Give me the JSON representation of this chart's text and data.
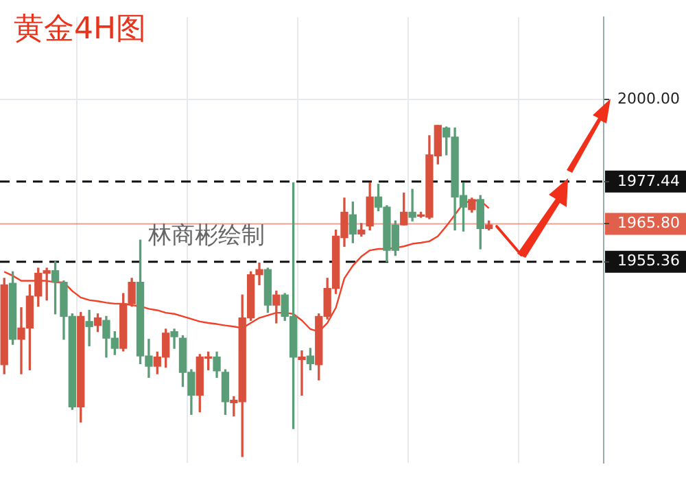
{
  "chart_data": {
    "type": "candlestick",
    "title": "黄金4H图",
    "annotations": [
      "林商彬绘制"
    ],
    "categories": [
      null,
      null,
      null,
      null,
      null,
      null,
      null,
      null,
      null,
      null,
      null,
      null,
      null,
      null,
      null,
      null,
      null,
      null,
      null,
      null,
      null,
      null,
      null,
      null,
      null,
      null,
      null,
      null,
      null,
      null,
      null,
      null,
      null,
      null,
      null,
      null,
      null,
      null,
      null,
      null,
      null,
      null,
      null,
      null,
      null,
      null,
      null,
      null,
      null,
      null,
      null,
      null,
      null,
      null,
      null,
      null,
      null,
      null,
      null,
      null,
      null,
      null,
      null,
      null,
      null,
      null,
      null,
      null,
      null,
      null,
      null
    ],
    "ohlc": [
      [
        1927.0,
        1950.8,
        1924.5,
        1949.0
      ],
      [
        1949.4,
        1952.6,
        1932.6,
        1934.0
      ],
      [
        1934.0,
        1942.7,
        1924.5,
        1937.1
      ],
      [
        1937.1,
        1949.0,
        1925.6,
        1945.9
      ],
      [
        1945.9,
        1953.6,
        1943.1,
        1952.2
      ],
      [
        1952.2,
        1953.6,
        1944.8,
        1952.9
      ],
      [
        1952.9,
        1955.4,
        1941.0,
        1949.7
      ],
      [
        1949.7,
        1950.1,
        1934.0,
        1940.3
      ],
      [
        1940.3,
        1941.0,
        1914.7,
        1915.4
      ],
      [
        1915.4,
        1941.4,
        1911.2,
        1940.3
      ],
      [
        1938.9,
        1942.0,
        1932.2,
        1937.5
      ],
      [
        1937.8,
        1941.0,
        1936.1,
        1939.9
      ],
      [
        1939.2,
        1940.3,
        1929.1,
        1934.3
      ],
      [
        1934.3,
        1936.1,
        1929.8,
        1931.5
      ],
      [
        1931.5,
        1946.6,
        1930.8,
        1943.8
      ],
      [
        1943.8,
        1950.8,
        1943.1,
        1949.7
      ],
      [
        1949.7,
        1961.3,
        1927.3,
        1929.4
      ],
      [
        1929.4,
        1934.0,
        1923.5,
        1926.6
      ],
      [
        1926.6,
        1930.5,
        1924.5,
        1929.1
      ],
      [
        1929.1,
        1936.8,
        1926.3,
        1935.7
      ],
      [
        1936.1,
        1936.8,
        1931.5,
        1934.7
      ],
      [
        1934.3,
        1935.0,
        1921.0,
        1924.9
      ],
      [
        1924.9,
        1925.6,
        1913.3,
        1918.6
      ],
      [
        1918.6,
        1929.8,
        1914.0,
        1929.1
      ],
      [
        1928.8,
        1930.5,
        1925.6,
        1929.1
      ],
      [
        1929.1,
        1930.5,
        1923.5,
        1925.3
      ],
      [
        1924.9,
        1925.6,
        1913.3,
        1916.8
      ],
      [
        1916.5,
        1918.2,
        1912.9,
        1917.2
      ],
      [
        1916.8,
        1946.2,
        1901.7,
        1939.9
      ],
      [
        1939.9,
        1952.6,
        1939.2,
        1951.8
      ],
      [
        1951.8,
        1955.0,
        1949.0,
        1953.2
      ],
      [
        1953.2,
        1953.6,
        1941.4,
        1943.4
      ],
      [
        1943.4,
        1947.3,
        1938.5,
        1946.2
      ],
      [
        1946.2,
        1946.6,
        1939.2,
        1940.3
      ],
      [
        1940.3,
        1977.1,
        1909.4,
        1929.1
      ],
      [
        1928.4,
        1930.8,
        1918.6,
        1929.1
      ],
      [
        1929.4,
        1931.5,
        1925.6,
        1927.3
      ],
      [
        1927.0,
        1941.0,
        1922.8,
        1940.3
      ],
      [
        1940.3,
        1950.8,
        1939.6,
        1948.0
      ],
      [
        1948.0,
        1964.1,
        1946.6,
        1962.4
      ],
      [
        1962.0,
        1972.9,
        1959.6,
        1969.0
      ],
      [
        1968.3,
        1971.8,
        1960.6,
        1963.0
      ],
      [
        1963.0,
        1965.9,
        1962.4,
        1964.1
      ],
      [
        1965.2,
        1977.1,
        1964.1,
        1973.2
      ],
      [
        1973.2,
        1976.7,
        1969.4,
        1970.4
      ],
      [
        1970.4,
        1970.8,
        1955.4,
        1958.5
      ],
      [
        1965.5,
        1966.6,
        1957.1,
        1958.5
      ],
      [
        1965.5,
        1974.3,
        1965.5,
        1969.0
      ],
      [
        1969.0,
        1975.3,
        1966.6,
        1967.6
      ],
      [
        1967.9,
        1969.0,
        1967.6,
        1968.0
      ],
      [
        1967.6,
        1990.1,
        1967.2,
        1984.8
      ],
      [
        1984.5,
        1992.9,
        1982.3,
        1992.9
      ],
      [
        1992.2,
        1992.5,
        1984.8,
        1989.7
      ],
      [
        1989.7,
        1992.2,
        1964.1,
        1973.2
      ],
      [
        1973.6,
        1977.1,
        1963.8,
        1970.4
      ],
      [
        1969.7,
        1972.9,
        1969.0,
        1972.5
      ],
      [
        1972.5,
        1973.6,
        1958.9,
        1964.5
      ],
      [
        1964.5,
        1966.6,
        1964.1,
        1965.5
      ],
      null,
      null,
      null,
      null,
      null,
      null,
      null,
      null,
      null,
      null,
      null,
      null,
      null
    ],
    "colors": [
      "#d9503c",
      "#5a9e78",
      "#d9503c",
      "#d9503c",
      "#d9503c",
      "#d9503c",
      "#5a9e78",
      "#5a9e78",
      "#5a9e78",
      "#d9503c",
      "#5a9e78",
      "#d9503c",
      "#5a9e78",
      "#5a9e78",
      "#d9503c",
      "#d9503c",
      "#5a9e78",
      "#5a9e78",
      "#d9503c",
      "#d9503c",
      "#5a9e78",
      "#5a9e78",
      "#5a9e78",
      "#d9503c",
      "#d9503c",
      "#5a9e78",
      "#5a9e78",
      "#d9503c",
      "#d9503c",
      "#d9503c",
      "#d9503c",
      "#5a9e78",
      "#d9503c",
      "#5a9e78",
      "#5a9e78",
      "#d9503c",
      "#5a9e78",
      "#d9503c",
      "#d9503c",
      "#d9503c",
      "#d9503c",
      "#5a9e78",
      "#d9503c",
      "#d9503c",
      "#5a9e78",
      "#5a9e78",
      "#5a9e78",
      "#d9503c",
      "#5a9e78",
      "#d9503c",
      "#d9503c",
      "#d9503c",
      "#5a9e78",
      "#5a9e78",
      "#5a9e78",
      "#d9503c",
      "#5a9e78",
      "#d9503c",
      null,
      null,
      null,
      null,
      null,
      null,
      null,
      null,
      null,
      null,
      null,
      null,
      null
    ],
    "series": [
      {
        "type": "line",
        "color": "#f0402a",
        "values": [
          1952.6,
          1951.5,
          1950.1,
          1950.1,
          1950.1,
          1950.1,
          1949.7,
          1949.7,
          1947.3,
          1945.5,
          1944.8,
          1944.5,
          1944.1,
          1943.8,
          1943.8,
          1943.4,
          1943.1,
          1942.4,
          1942.0,
          1941.3,
          1941.0,
          1940.3,
          1939.6,
          1938.9,
          1938.5,
          1938.2,
          1937.8,
          1937.5,
          1937.1,
          1938.5,
          1939.9,
          1940.6,
          1941.3,
          1941.3,
          1941.0,
          1939.2,
          1936.8,
          1936.1,
          1938.5,
          1942.7,
          1950.8,
          1954.3,
          1956.8,
          1958.5,
          1958.9,
          1958.9,
          1959.2,
          1959.6,
          1960.3,
          1960.6,
          1961.0,
          1962.4,
          1965.2,
          1968.3,
          1971.5,
          1972.2,
          1972.2,
          1970.1,
          null,
          null,
          null,
          null,
          null,
          null,
          null,
          null,
          null,
          null,
          null,
          null,
          null
        ]
      }
    ],
    "ylim": [
      1900,
      2022.7
    ],
    "yticks": [
      1955.36,
      {
        "value": 1965.8,
        "label": "1965.80"
      },
      1977.44,
      {
        "value": 2000,
        "label": "2000.00"
      }
    ],
    "ref_lines": [
      {
        "axis": "y",
        "value": 1977.44,
        "color": "#111111",
        "line_style": "dashed"
      },
      {
        "axis": "y",
        "value": 1965.8,
        "color": "#e0604c",
        "line_style": "solid"
      },
      {
        "axis": "y",
        "value": 1955.36,
        "color": "#111111",
        "line_style": "dashed"
      }
    ],
    "grid": true,
    "tick_labels": "y",
    "marker": "none"
  }
}
